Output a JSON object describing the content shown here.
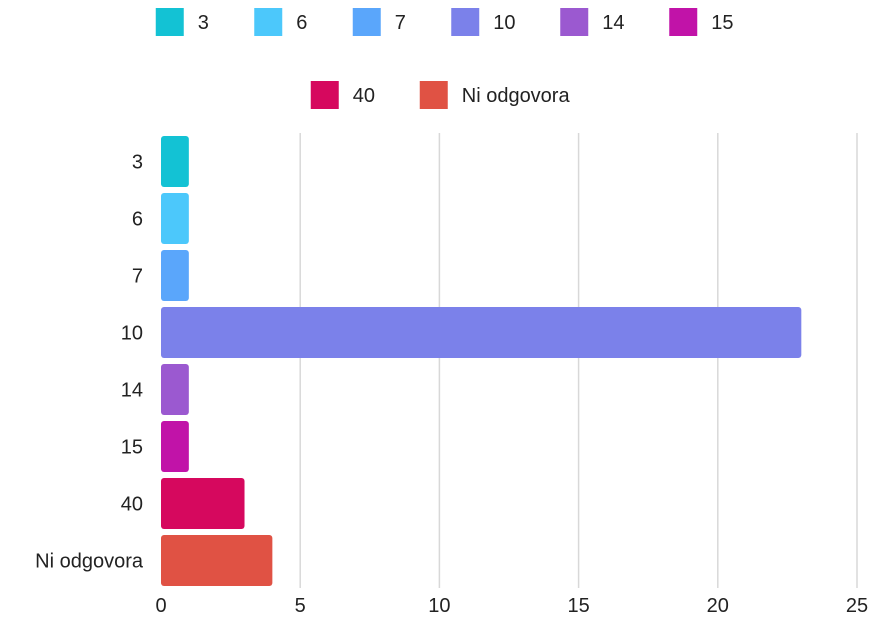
{
  "chart_data": {
    "type": "bar",
    "orientation": "horizontal",
    "title": "",
    "xlabel": "",
    "ylabel": "",
    "categories": [
      "3",
      "6",
      "7",
      "10",
      "14",
      "15",
      "40",
      "Ni odgovora"
    ],
    "values": [
      1,
      1,
      1,
      23,
      1,
      1,
      3,
      4
    ],
    "colors": [
      "#13c2d4",
      "#4cc8fb",
      "#5aa6fb",
      "#7b81ea",
      "#9b59d0",
      "#c113a8",
      "#d6085e",
      "#e05244"
    ],
    "xlim": [
      0,
      25
    ],
    "xticks": [
      0,
      5,
      10,
      15,
      20,
      25
    ],
    "grid": true,
    "legend": {
      "placement": "top",
      "entries": [
        "3",
        "6",
        "7",
        "10",
        "14",
        "15",
        "40",
        "Ni odgovora"
      ]
    }
  }
}
